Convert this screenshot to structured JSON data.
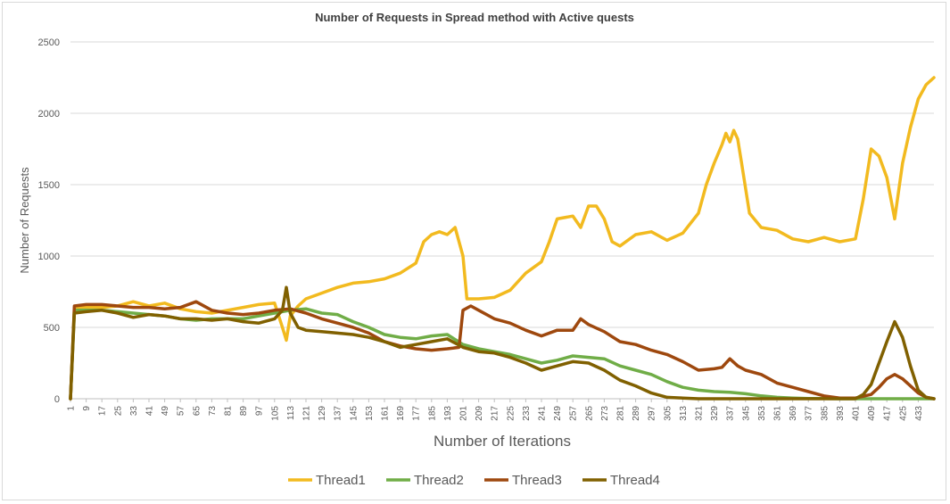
{
  "chart_data": {
    "type": "line",
    "title": "Number of Requests in Spread method with Active quests",
    "xlabel": "Number of Iterations",
    "ylabel": "Number of Requests",
    "xlim": [
      1,
      441
    ],
    "ylim": [
      0,
      2500
    ],
    "yticks": [
      "0",
      "500",
      "1000",
      "1500",
      "2000",
      "2500"
    ],
    "xticks": [
      "1",
      "9",
      "17",
      "25",
      "33",
      "41",
      "49",
      "57",
      "65",
      "73",
      "81",
      "89",
      "97",
      "105",
      "113",
      "121",
      "129",
      "137",
      "145",
      "153",
      "161",
      "169",
      "177",
      "185",
      "193",
      "201",
      "209",
      "217",
      "225",
      "233",
      "241",
      "249",
      "257",
      "265",
      "273",
      "281",
      "289",
      "297",
      "305",
      "313",
      "321",
      "329",
      "337",
      "345",
      "353",
      "361",
      "369",
      "377",
      "385",
      "393",
      "401",
      "409",
      "417",
      "425",
      "433"
    ],
    "grid": "horizontal",
    "legend_position": "bottom",
    "series": [
      {
        "name": "Thread1",
        "color": "#F2BA1F",
        "points": [
          [
            1,
            0
          ],
          [
            3,
            640
          ],
          [
            9,
            640
          ],
          [
            17,
            640
          ],
          [
            25,
            650
          ],
          [
            33,
            680
          ],
          [
            41,
            650
          ],
          [
            49,
            670
          ],
          [
            57,
            630
          ],
          [
            65,
            610
          ],
          [
            73,
            600
          ],
          [
            81,
            620
          ],
          [
            89,
            640
          ],
          [
            97,
            660
          ],
          [
            105,
            670
          ],
          [
            109,
            500
          ],
          [
            111,
            410
          ],
          [
            113,
            580
          ],
          [
            117,
            650
          ],
          [
            121,
            700
          ],
          [
            129,
            740
          ],
          [
            137,
            780
          ],
          [
            145,
            810
          ],
          [
            153,
            820
          ],
          [
            161,
            840
          ],
          [
            169,
            880
          ],
          [
            177,
            950
          ],
          [
            181,
            1100
          ],
          [
            185,
            1150
          ],
          [
            189,
            1170
          ],
          [
            193,
            1150
          ],
          [
            197,
            1200
          ],
          [
            201,
            1000
          ],
          [
            203,
            700
          ],
          [
            209,
            700
          ],
          [
            217,
            710
          ],
          [
            225,
            760
          ],
          [
            233,
            880
          ],
          [
            241,
            960
          ],
          [
            245,
            1100
          ],
          [
            249,
            1260
          ],
          [
            257,
            1280
          ],
          [
            261,
            1200
          ],
          [
            265,
            1350
          ],
          [
            269,
            1350
          ],
          [
            273,
            1260
          ],
          [
            277,
            1100
          ],
          [
            281,
            1070
          ],
          [
            289,
            1150
          ],
          [
            297,
            1170
          ],
          [
            305,
            1110
          ],
          [
            313,
            1160
          ],
          [
            321,
            1300
          ],
          [
            325,
            1500
          ],
          [
            329,
            1650
          ],
          [
            333,
            1780
          ],
          [
            335,
            1860
          ],
          [
            337,
            1800
          ],
          [
            339,
            1880
          ],
          [
            341,
            1820
          ],
          [
            343,
            1650
          ],
          [
            347,
            1300
          ],
          [
            353,
            1200
          ],
          [
            361,
            1180
          ],
          [
            369,
            1120
          ],
          [
            377,
            1100
          ],
          [
            385,
            1130
          ],
          [
            393,
            1100
          ],
          [
            401,
            1120
          ],
          [
            405,
            1400
          ],
          [
            409,
            1750
          ],
          [
            413,
            1700
          ],
          [
            417,
            1550
          ],
          [
            421,
            1260
          ],
          [
            425,
            1650
          ],
          [
            429,
            1900
          ],
          [
            433,
            2100
          ],
          [
            437,
            2200
          ],
          [
            441,
            2250
          ]
        ]
      },
      {
        "name": "Thread2",
        "color": "#70AD47",
        "points": [
          [
            1,
            0
          ],
          [
            3,
            620
          ],
          [
            9,
            620
          ],
          [
            17,
            620
          ],
          [
            25,
            610
          ],
          [
            33,
            600
          ],
          [
            41,
            590
          ],
          [
            49,
            580
          ],
          [
            57,
            560
          ],
          [
            65,
            550
          ],
          [
            73,
            560
          ],
          [
            81,
            560
          ],
          [
            89,
            560
          ],
          [
            97,
            580
          ],
          [
            105,
            600
          ],
          [
            113,
            620
          ],
          [
            121,
            630
          ],
          [
            129,
            600
          ],
          [
            137,
            590
          ],
          [
            145,
            540
          ],
          [
            153,
            500
          ],
          [
            161,
            450
          ],
          [
            169,
            430
          ],
          [
            177,
            420
          ],
          [
            185,
            440
          ],
          [
            193,
            450
          ],
          [
            201,
            380
          ],
          [
            209,
            350
          ],
          [
            217,
            330
          ],
          [
            225,
            310
          ],
          [
            233,
            280
          ],
          [
            241,
            250
          ],
          [
            249,
            270
          ],
          [
            257,
            300
          ],
          [
            265,
            290
          ],
          [
            273,
            280
          ],
          [
            281,
            230
          ],
          [
            289,
            200
          ],
          [
            297,
            170
          ],
          [
            305,
            120
          ],
          [
            313,
            80
          ],
          [
            321,
            60
          ],
          [
            329,
            50
          ],
          [
            337,
            45
          ],
          [
            345,
            35
          ],
          [
            353,
            20
          ],
          [
            361,
            10
          ],
          [
            369,
            5
          ],
          [
            377,
            2
          ],
          [
            385,
            1
          ],
          [
            393,
            0
          ],
          [
            401,
            0
          ],
          [
            409,
            0
          ],
          [
            417,
            0
          ],
          [
            425,
            0
          ],
          [
            433,
            0
          ],
          [
            441,
            0
          ]
        ]
      },
      {
        "name": "Thread3",
        "color": "#9E480E",
        "points": [
          [
            1,
            0
          ],
          [
            3,
            650
          ],
          [
            9,
            660
          ],
          [
            17,
            660
          ],
          [
            25,
            650
          ],
          [
            33,
            640
          ],
          [
            41,
            640
          ],
          [
            49,
            630
          ],
          [
            57,
            640
          ],
          [
            65,
            680
          ],
          [
            73,
            620
          ],
          [
            81,
            600
          ],
          [
            89,
            590
          ],
          [
            97,
            600
          ],
          [
            105,
            620
          ],
          [
            113,
            630
          ],
          [
            121,
            600
          ],
          [
            129,
            560
          ],
          [
            137,
            530
          ],
          [
            145,
            500
          ],
          [
            153,
            460
          ],
          [
            161,
            400
          ],
          [
            169,
            370
          ],
          [
            177,
            350
          ],
          [
            185,
            340
          ],
          [
            193,
            350
          ],
          [
            199,
            360
          ],
          [
            201,
            620
          ],
          [
            205,
            650
          ],
          [
            209,
            620
          ],
          [
            217,
            560
          ],
          [
            225,
            530
          ],
          [
            233,
            480
          ],
          [
            241,
            440
          ],
          [
            249,
            480
          ],
          [
            257,
            480
          ],
          [
            261,
            560
          ],
          [
            265,
            520
          ],
          [
            273,
            470
          ],
          [
            281,
            400
          ],
          [
            289,
            380
          ],
          [
            297,
            340
          ],
          [
            305,
            310
          ],
          [
            313,
            260
          ],
          [
            321,
            200
          ],
          [
            329,
            210
          ],
          [
            333,
            220
          ],
          [
            337,
            280
          ],
          [
            341,
            230
          ],
          [
            345,
            200
          ],
          [
            353,
            170
          ],
          [
            361,
            110
          ],
          [
            369,
            80
          ],
          [
            377,
            50
          ],
          [
            385,
            20
          ],
          [
            393,
            5
          ],
          [
            401,
            5
          ],
          [
            409,
            30
          ],
          [
            413,
            80
          ],
          [
            417,
            140
          ],
          [
            421,
            170
          ],
          [
            425,
            140
          ],
          [
            429,
            90
          ],
          [
            433,
            40
          ],
          [
            437,
            10
          ],
          [
            441,
            0
          ]
        ]
      },
      {
        "name": "Thread4",
        "color": "#806000",
        "points": [
          [
            1,
            0
          ],
          [
            3,
            600
          ],
          [
            9,
            610
          ],
          [
            17,
            620
          ],
          [
            25,
            600
          ],
          [
            33,
            570
          ],
          [
            41,
            590
          ],
          [
            49,
            580
          ],
          [
            57,
            560
          ],
          [
            65,
            560
          ],
          [
            73,
            550
          ],
          [
            81,
            560
          ],
          [
            89,
            540
          ],
          [
            97,
            530
          ],
          [
            105,
            560
          ],
          [
            109,
            620
          ],
          [
            111,
            780
          ],
          [
            113,
            600
          ],
          [
            117,
            500
          ],
          [
            121,
            480
          ],
          [
            129,
            470
          ],
          [
            137,
            460
          ],
          [
            145,
            450
          ],
          [
            153,
            430
          ],
          [
            161,
            400
          ],
          [
            169,
            360
          ],
          [
            177,
            380
          ],
          [
            185,
            400
          ],
          [
            193,
            420
          ],
          [
            201,
            360
          ],
          [
            209,
            330
          ],
          [
            217,
            320
          ],
          [
            225,
            290
          ],
          [
            233,
            250
          ],
          [
            241,
            200
          ],
          [
            249,
            230
          ],
          [
            257,
            260
          ],
          [
            265,
            250
          ],
          [
            273,
            200
          ],
          [
            281,
            130
          ],
          [
            289,
            90
          ],
          [
            297,
            40
          ],
          [
            305,
            10
          ],
          [
            313,
            5
          ],
          [
            321,
            0
          ],
          [
            329,
            0
          ],
          [
            337,
            0
          ],
          [
            345,
            0
          ],
          [
            353,
            0
          ],
          [
            361,
            0
          ],
          [
            369,
            0
          ],
          [
            377,
            0
          ],
          [
            385,
            0
          ],
          [
            393,
            0
          ],
          [
            401,
            0
          ],
          [
            405,
            30
          ],
          [
            409,
            100
          ],
          [
            413,
            250
          ],
          [
            417,
            400
          ],
          [
            421,
            540
          ],
          [
            425,
            430
          ],
          [
            429,
            230
          ],
          [
            433,
            60
          ],
          [
            437,
            10
          ],
          [
            441,
            0
          ]
        ]
      }
    ]
  }
}
